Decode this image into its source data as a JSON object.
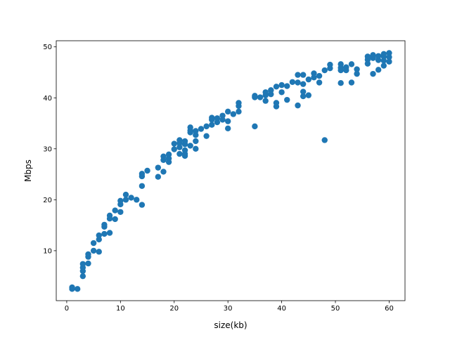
{
  "chart_data": {
    "type": "scatter",
    "xlabel": "size(kb)",
    "ylabel": "Mbps",
    "color": "#1f77b4",
    "x": [
      1,
      1,
      2,
      3,
      3,
      3,
      3,
      4,
      4,
      4,
      5,
      5,
      6,
      6,
      6,
      7,
      7,
      7,
      8,
      8,
      8,
      9,
      9,
      10,
      10,
      10,
      11,
      11,
      12,
      13,
      14,
      14,
      14,
      14,
      15,
      17,
      17,
      18,
      18,
      18,
      19,
      19,
      19,
      20,
      20,
      21,
      21,
      21,
      21,
      22,
      22,
      22,
      22,
      22,
      23,
      23,
      23,
      23,
      24,
      24,
      24,
      24,
      25,
      26,
      26,
      27,
      27,
      27,
      28,
      28,
      29,
      29,
      30,
      30,
      30,
      31,
      32,
      32,
      32,
      35,
      35,
      35,
      36,
      37,
      37,
      37,
      38,
      38,
      39,
      39,
      39,
      40,
      40,
      41,
      41,
      42,
      43,
      43,
      43,
      44,
      44,
      44,
      44,
      45,
      45,
      46,
      46,
      47,
      47,
      48,
      48,
      49,
      49,
      51,
      51,
      51,
      51,
      52,
      52,
      53,
      53,
      54,
      54,
      56,
      56,
      56,
      57,
      57,
      57,
      58,
      58,
      58,
      59,
      59,
      59,
      59,
      60,
      60,
      60
    ],
    "values": [
      2.8,
      2.5,
      2.5,
      5,
      6,
      6.7,
      7.4,
      7.5,
      8.8,
      9.3,
      11.5,
      10,
      9.8,
      12.2,
      13,
      13.3,
      14.7,
      15.1,
      13.5,
      16.3,
      16.9,
      16.2,
      17.9,
      17.6,
      19.1,
      19.8,
      20,
      21,
      20.4,
      20,
      19,
      22.7,
      24.6,
      25.1,
      25.7,
      24.5,
      26.3,
      25.5,
      27.8,
      28.5,
      27.4,
      28.1,
      28.9,
      29.9,
      31,
      29,
      30.3,
      31.1,
      31.7,
      29.7,
      30.9,
      31.5,
      29,
      28.6,
      30.6,
      33.2,
      34.2,
      33.6,
      30,
      31.5,
      32.7,
      33.5,
      33.9,
      32.5,
      34.4,
      34.7,
      35.7,
      36.1,
      35.2,
      36,
      36.5,
      35.7,
      34,
      35.4,
      37.3,
      36.8,
      37.3,
      38.4,
      39,
      34.4,
      40.1,
      40.4,
      40.1,
      39.4,
      40.5,
      41.1,
      40.7,
      41.5,
      38.3,
      39,
      42.2,
      41.1,
      42.5,
      39.6,
      42.3,
      43.1,
      38.5,
      43,
      44.5,
      40.3,
      41.2,
      44.5,
      42.7,
      40.5,
      43.6,
      44.8,
      44,
      43,
      44.3,
      31.7,
      45.4,
      45.8,
      46.5,
      42.9,
      45.4,
      45.9,
      46.6,
      46,
      45.4,
      43,
      46.6,
      44.7,
      45.6,
      46.7,
      47.5,
      48.1,
      44.7,
      47.8,
      48.4,
      45.5,
      47.4,
      48.2,
      46.3,
      47.3,
      48.1,
      48.6,
      47.1,
      48,
      48.8
    ],
    "xlim": [
      -1.95,
      62.95
    ],
    "ylim": [
      0.2,
      51.2
    ],
    "xticks": [
      0,
      10,
      20,
      30,
      40,
      50,
      60
    ],
    "yticks": [
      10,
      20,
      30,
      40,
      50
    ]
  }
}
